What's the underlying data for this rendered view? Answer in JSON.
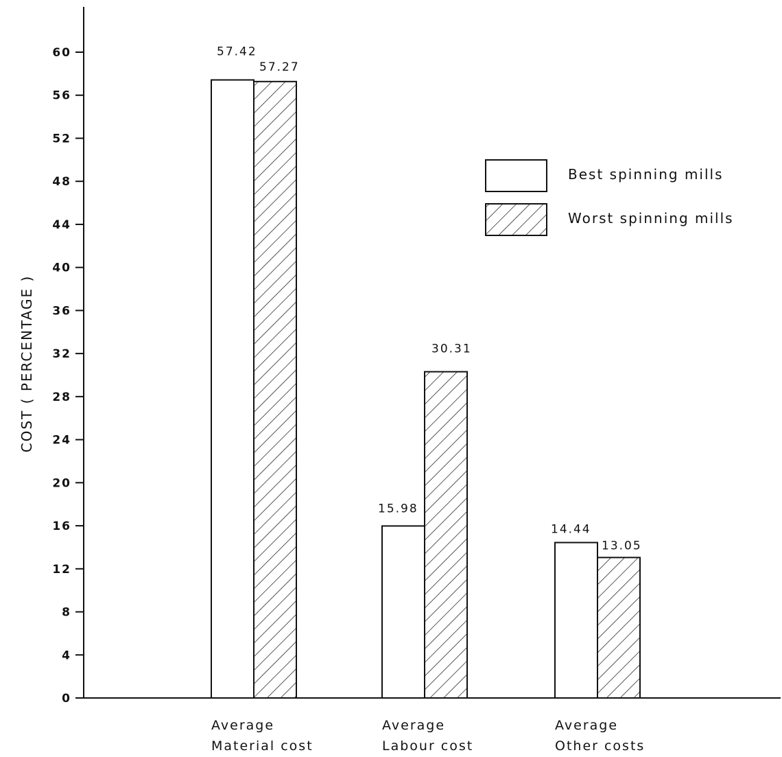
{
  "chart_data": {
    "type": "bar",
    "categories": [
      [
        "Average",
        "Material cost"
      ],
      [
        "Average",
        "Labour cost"
      ],
      [
        "Average",
        "Other costs"
      ]
    ],
    "series": [
      {
        "name": "Best spinning mills",
        "values": [
          57.42,
          15.98,
          14.44
        ],
        "labels": [
          "57.42",
          "15.98",
          "14.44"
        ],
        "pattern": "plain"
      },
      {
        "name": "Worst spinning mills",
        "values": [
          57.27,
          30.31,
          13.05
        ],
        "labels": [
          "57.27",
          "30.31",
          "13.05"
        ],
        "pattern": "hatched"
      }
    ],
    "ylabel": "COST ( PERCENTAGE )",
    "ylim": [
      0,
      60
    ],
    "yticks": [
      0,
      4,
      8,
      12,
      16,
      20,
      24,
      28,
      32,
      36,
      40,
      44,
      48,
      52,
      56,
      60
    ],
    "legend_position": "top-right",
    "grid": false,
    "colors": {
      "ink": "#111111",
      "background": "#ffffff"
    }
  }
}
